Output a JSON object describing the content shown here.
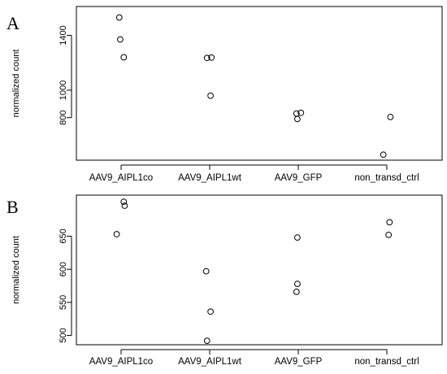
{
  "chart_data": [
    {
      "type": "scatter",
      "panel_label": "A",
      "ylabel": "normalized count",
      "categories": [
        "AAV9_AIPL1co",
        "AAV9_AIPL1wt",
        "AAV9_GFP",
        "non_transd_ctrl"
      ],
      "yticks": [
        800,
        1000,
        1400
      ],
      "ylim": [
        490,
        1610
      ],
      "points": [
        {
          "category": "AAV9_AIPL1co",
          "jitter": -0.02,
          "y": 1530
        },
        {
          "category": "AAV9_AIPL1co",
          "jitter": -0.01,
          "y": 1370
        },
        {
          "category": "AAV9_AIPL1co",
          "jitter": 0.03,
          "y": 1240
        },
        {
          "category": "AAV9_AIPL1wt",
          "jitter": -0.03,
          "y": 1235
        },
        {
          "category": "AAV9_AIPL1wt",
          "jitter": 0.02,
          "y": 1238
        },
        {
          "category": "AAV9_AIPL1wt",
          "jitter": 0.01,
          "y": 960
        },
        {
          "category": "AAV9_GFP",
          "jitter": -0.02,
          "y": 830
        },
        {
          "category": "AAV9_GFP",
          "jitter": 0.03,
          "y": 835
        },
        {
          "category": "AAV9_GFP",
          "jitter": -0.01,
          "y": 790
        },
        {
          "category": "non_transd_ctrl",
          "jitter": 0.04,
          "y": 805
        },
        {
          "category": "non_transd_ctrl",
          "jitter": -0.04,
          "y": 530
        }
      ]
    },
    {
      "type": "scatter",
      "panel_label": "B",
      "ylabel": "normalized count",
      "categories": [
        "AAV9_AIPL1co",
        "AAV9_AIPL1wt",
        "AAV9_GFP",
        "non_transd_ctrl"
      ],
      "yticks": [
        500,
        550,
        600,
        650
      ],
      "ylim": [
        486,
        712
      ],
      "points": [
        {
          "category": "AAV9_AIPL1co",
          "jitter": 0.03,
          "y": 702
        },
        {
          "category": "AAV9_AIPL1co",
          "jitter": 0.04,
          "y": 696
        },
        {
          "category": "AAV9_AIPL1co",
          "jitter": -0.05,
          "y": 653
        },
        {
          "category": "AAV9_AIPL1wt",
          "jitter": -0.04,
          "y": 597
        },
        {
          "category": "AAV9_AIPL1wt",
          "jitter": 0.01,
          "y": 536
        },
        {
          "category": "AAV9_AIPL1wt",
          "jitter": -0.03,
          "y": 492
        },
        {
          "category": "AAV9_GFP",
          "jitter": -0.01,
          "y": 648
        },
        {
          "category": "AAV9_GFP",
          "jitter": -0.01,
          "y": 578
        },
        {
          "category": "AAV9_GFP",
          "jitter": -0.02,
          "y": 566
        },
        {
          "category": "non_transd_ctrl",
          "jitter": 0.03,
          "y": 671
        },
        {
          "category": "non_transd_ctrl",
          "jitter": 0.02,
          "y": 652
        }
      ]
    }
  ]
}
